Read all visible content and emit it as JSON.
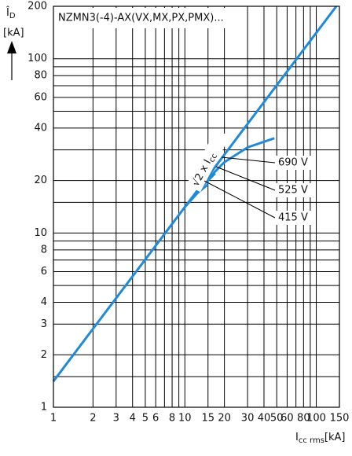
{
  "chart_data": {
    "type": "line",
    "title": "NZMN3(-4)-AX(VX,MX,PX,PMX)...",
    "ylabel": {
      "main": "Î",
      "sub": "D"
    },
    "yunit": "[kA]",
    "xlabel": {
      "main": "I",
      "sub": "cc rms"
    },
    "xunit": "[kA]",
    "xscale": "log",
    "yscale": "log",
    "grid": true,
    "xlim": [
      1,
      150
    ],
    "ylim": [
      1,
      200
    ],
    "xticks": [
      1,
      2,
      3,
      4,
      5,
      6,
      8,
      10,
      15,
      20,
      30,
      40,
      50,
      60,
      80,
      100,
      150
    ],
    "xminor": [
      7,
      9,
      70,
      90
    ],
    "yticks": [
      1,
      2,
      3,
      4,
      6,
      8,
      10,
      20,
      40,
      60,
      80,
      100,
      200
    ],
    "yminor": [
      1.5,
      5,
      7,
      9,
      15,
      30,
      50,
      70,
      90
    ],
    "line_label": {
      "main": "√2 x I",
      "sub": "cc"
    },
    "series": [
      {
        "color": "#1f8ad8",
        "x": [
          1,
          142
        ],
        "values": [
          1.41,
          200
        ]
      },
      {
        "name": "690 V",
        "color": "#1f8ad8",
        "x": [
          10,
          15,
          20,
          30,
          48
        ],
        "values": [
          14.1,
          20.5,
          25.5,
          31,
          35
        ]
      },
      {
        "name": "525 V",
        "color": "#1f8ad8",
        "x": [
          10,
          13,
          17
        ],
        "values": [
          14.1,
          18,
          22
        ]
      },
      {
        "name": "415 V",
        "color": "#1f8ad8",
        "x": [
          10,
          12.5,
          15
        ],
        "values": [
          14.1,
          17,
          19
        ]
      }
    ]
  }
}
